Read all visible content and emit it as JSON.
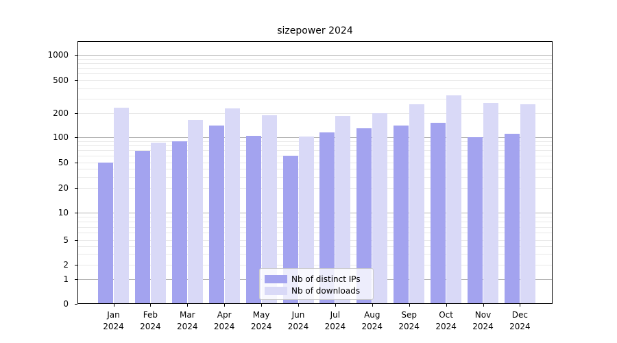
{
  "title": "sizepower 2024",
  "legend": {
    "items": [
      {
        "label": "Nb of distinct IPs",
        "color": "#a3a3ef"
      },
      {
        "label": "Nb of downloads",
        "color": "#d9d9f7"
      }
    ]
  },
  "colors": {
    "bar_distinct_ips": "#a3a3ef",
    "bar_downloads": "#d9d9f7",
    "major_grid": "#b3b3b3",
    "minor_grid": "#e8e8e8",
    "axis": "#000000"
  },
  "chart_data": {
    "type": "bar",
    "title": "sizepower 2024",
    "categories": [
      "Jan",
      "Feb",
      "Mar",
      "Apr",
      "May",
      "Jun",
      "Jul",
      "Aug",
      "Sep",
      "Oct",
      "Nov",
      "Dec"
    ],
    "category_year": "2024",
    "series": [
      {
        "name": "Nb of distinct IPs",
        "color": "#a3a3ef",
        "values": [
          50,
          69,
          90,
          140,
          105,
          60,
          115,
          130,
          140,
          152,
          100,
          110
        ]
      },
      {
        "name": "Nb of downloads",
        "color": "#d9d9f7",
        "values": [
          233,
          86,
          163,
          228,
          190,
          101,
          185,
          199,
          255,
          330,
          266,
          258
        ]
      }
    ],
    "yscale": "log-with-zero",
    "y_ticks": [
      1000,
      500,
      200,
      100,
      50,
      20,
      10,
      5,
      2,
      1,
      0
    ],
    "y_minor_grid": [
      2,
      3,
      4,
      5,
      6,
      7,
      8,
      9,
      20,
      30,
      40,
      50,
      60,
      70,
      80,
      90,
      200,
      300,
      400,
      500,
      600,
      700,
      800,
      900
    ],
    "y_major_grid": [
      1,
      10,
      100,
      1000
    ],
    "ylim": [
      0,
      1500
    ],
    "grid": true,
    "legend_position": "lower center"
  }
}
